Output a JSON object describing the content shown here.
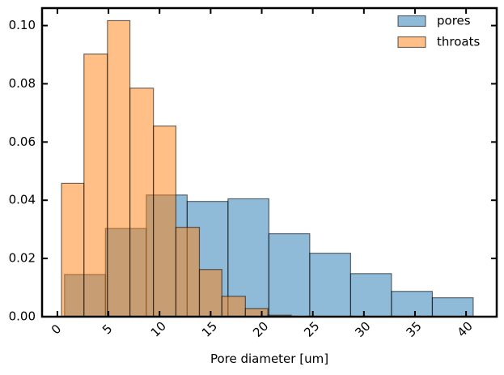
{
  "chart_data": {
    "type": "bar",
    "subtype": "histogram",
    "title": "",
    "xlabel": "Pore diameter [um]",
    "ylabel": "",
    "xlim": [
      -1.5,
      43.0
    ],
    "ylim": [
      0,
      0.106
    ],
    "xticks": [
      0,
      5,
      10,
      15,
      20,
      25,
      30,
      35,
      40
    ],
    "xtick_labels": [
      "0",
      "5",
      "10",
      "15",
      "20",
      "25",
      "30",
      "35",
      "40"
    ],
    "xtick_rotation": -45,
    "yticks": [
      0.0,
      0.02,
      0.04,
      0.06,
      0.08,
      0.1
    ],
    "ytick_labels": [
      "0.00",
      "0.02",
      "0.04",
      "0.06",
      "0.08",
      "0.10"
    ],
    "grid": false,
    "legend_position": "top-right",
    "series": [
      {
        "name": "pores",
        "color": "#1f77b4",
        "opacity": 0.5,
        "bin_edges": [
          0.7,
          4.7,
          8.7,
          12.7,
          16.7,
          20.7,
          24.7,
          28.7,
          32.7,
          36.7,
          40.7
        ],
        "values": [
          0.0145,
          0.0303,
          0.0418,
          0.0396,
          0.0405,
          0.0285,
          0.0218,
          0.0148,
          0.0087,
          0.0065
        ]
      },
      {
        "name": "throats",
        "color": "#ff7f0e",
        "opacity": 0.5,
        "bin_edges": [
          0.4,
          2.6,
          4.9,
          7.1,
          9.4,
          11.6,
          13.9,
          16.1,
          18.4,
          20.6,
          22.9
        ],
        "values": [
          0.0458,
          0.0902,
          0.1017,
          0.0785,
          0.0655,
          0.0307,
          0.0162,
          0.007,
          0.0028,
          0.0005
        ]
      }
    ]
  }
}
